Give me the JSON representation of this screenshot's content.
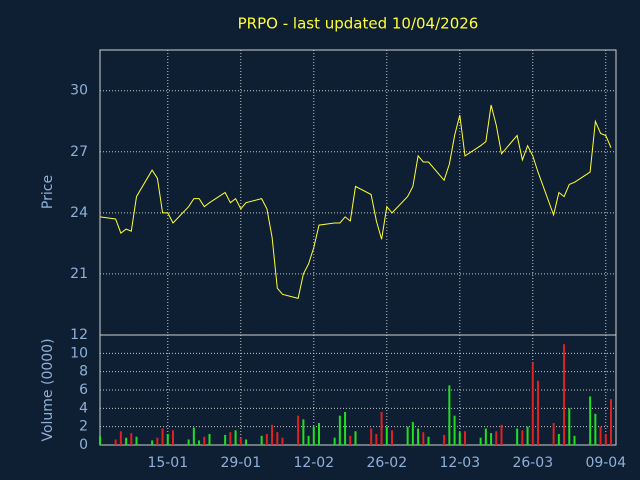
{
  "chart_data": {
    "type": "stock",
    "title": "PRPO - last updated 10/04/2026",
    "x": [
      "02-01",
      "05-01",
      "06-01",
      "07-01",
      "08-01",
      "09-01",
      "12-01",
      "13-01",
      "14-01",
      "15-01",
      "16-01",
      "19-01",
      "20-01",
      "21-01",
      "22-01",
      "23-01",
      "26-01",
      "27-01",
      "28-01",
      "29-01",
      "30-01",
      "02-02",
      "03-02",
      "04-02",
      "05-02",
      "06-02",
      "09-02",
      "10-02",
      "11-02",
      "12-02",
      "13-02",
      "16-02",
      "17-02",
      "18-02",
      "19-02",
      "20-02",
      "23-02",
      "24-02",
      "25-02",
      "26-02",
      "27-02",
      "02-03",
      "03-03",
      "04-03",
      "05-03",
      "06-03",
      "09-03",
      "10-03",
      "11-03",
      "12-03",
      "13-03",
      "16-03",
      "17-03",
      "18-03",
      "19-03",
      "20-03",
      "23-03",
      "24-03",
      "25-03",
      "26-03",
      "27-03",
      "30-03",
      "31-03",
      "01-04",
      "02-04",
      "03-04",
      "06-04",
      "07-04",
      "08-04",
      "09-04",
      "10-04"
    ],
    "xticks": [
      "15-01",
      "29-01",
      "12-02",
      "26-02",
      "12-03",
      "26-03",
      "09-04"
    ],
    "price": {
      "label": "Price",
      "color": "#ffff33",
      "ylim": [
        18,
        32
      ],
      "yticks": [
        21,
        24,
        27,
        30
      ],
      "values": [
        23.8,
        23.7,
        23.0,
        23.2,
        23.1,
        24.8,
        26.1,
        25.7,
        24.0,
        24.0,
        23.5,
        24.3,
        24.7,
        24.7,
        24.3,
        24.5,
        25.0,
        24.5,
        24.7,
        24.2,
        24.5,
        24.7,
        24.2,
        22.8,
        20.3,
        20.0,
        19.8,
        21.0,
        21.5,
        22.3,
        23.4,
        23.5,
        23.5,
        23.8,
        23.6,
        25.3,
        24.9,
        23.6,
        22.7,
        24.3,
        24.0,
        24.8,
        25.3,
        26.8,
        26.5,
        26.5,
        25.6,
        26.4,
        27.8,
        28.8,
        26.8,
        27.3,
        27.5,
        29.3,
        28.3,
        26.9,
        27.8,
        26.6,
        27.3,
        26.8,
        26.0,
        23.9,
        25.0,
        24.8,
        25.4,
        25.5,
        26.0,
        28.5,
        27.9,
        27.8,
        27.2
      ]
    },
    "volume": {
      "label": "Volume (0000)",
      "up_color": "#22dd22",
      "down_color": "#dd2222",
      "ylim": [
        0,
        12
      ],
      "yticks": [
        0,
        2,
        4,
        6,
        8,
        10,
        12
      ],
      "values": [
        1.0,
        0.6,
        1.5,
        0.8,
        1.3,
        0.9,
        0.5,
        0.8,
        1.8,
        1.2,
        1.6,
        0.6,
        1.9,
        0.5,
        0.9,
        1.2,
        1.1,
        1.4,
        1.6,
        0.8,
        0.6,
        1.0,
        1.2,
        2.2,
        1.4,
        0.8,
        3.2,
        2.8,
        1.0,
        2.0,
        2.4,
        0.8,
        3.2,
        3.6,
        1.0,
        1.5,
        1.8,
        1.2,
        3.6,
        2.0,
        1.6,
        2.0,
        2.5,
        1.8,
        1.4,
        0.9,
        1.1,
        6.5,
        3.2,
        1.4,
        1.5,
        0.8,
        1.8,
        1.3,
        1.5,
        2.2,
        1.8,
        1.6,
        2.0,
        9.0,
        7.0,
        2.4,
        1.2,
        11.0,
        4.0,
        1.0,
        5.3,
        3.4,
        2.0,
        1.2,
        5.0
      ]
    }
  }
}
